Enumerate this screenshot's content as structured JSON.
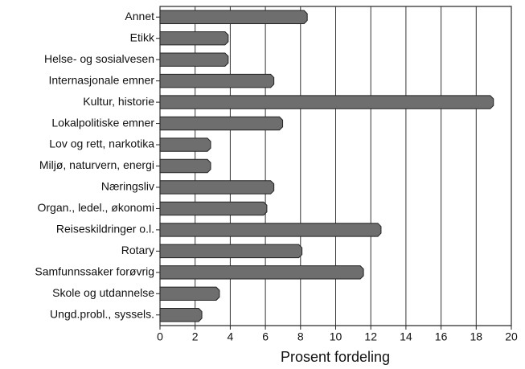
{
  "chart_data": {
    "type": "hbar",
    "xlabel": "Prosent fordeling",
    "categories": [
      "Annet",
      "Etikk",
      "Helse- og sosialvesen",
      "Internasjonale emner",
      "Kultur, historie",
      "Lokalpolitiske emner",
      "Lov og rett, narkotika",
      "Miljø, naturvern, energi",
      "Næringsliv",
      "Organ., ledel., økonomi",
      "Reiseskildringer o.l.",
      "Rotary",
      "Samfunnssaker forøvrig",
      "Skole og utdannelse",
      "Ungd.probl., syssels."
    ],
    "values": [
      8.2,
      3.7,
      3.7,
      6.3,
      18.8,
      6.8,
      2.7,
      2.7,
      6.3,
      5.9,
      12.4,
      7.9,
      11.4,
      3.2,
      2.2
    ],
    "color": "#6e6e6e",
    "xlim": [
      0,
      20
    ],
    "xticks": [
      0,
      2,
      4,
      6,
      8,
      10,
      12,
      14,
      16,
      18,
      20
    ],
    "grid": true
  }
}
